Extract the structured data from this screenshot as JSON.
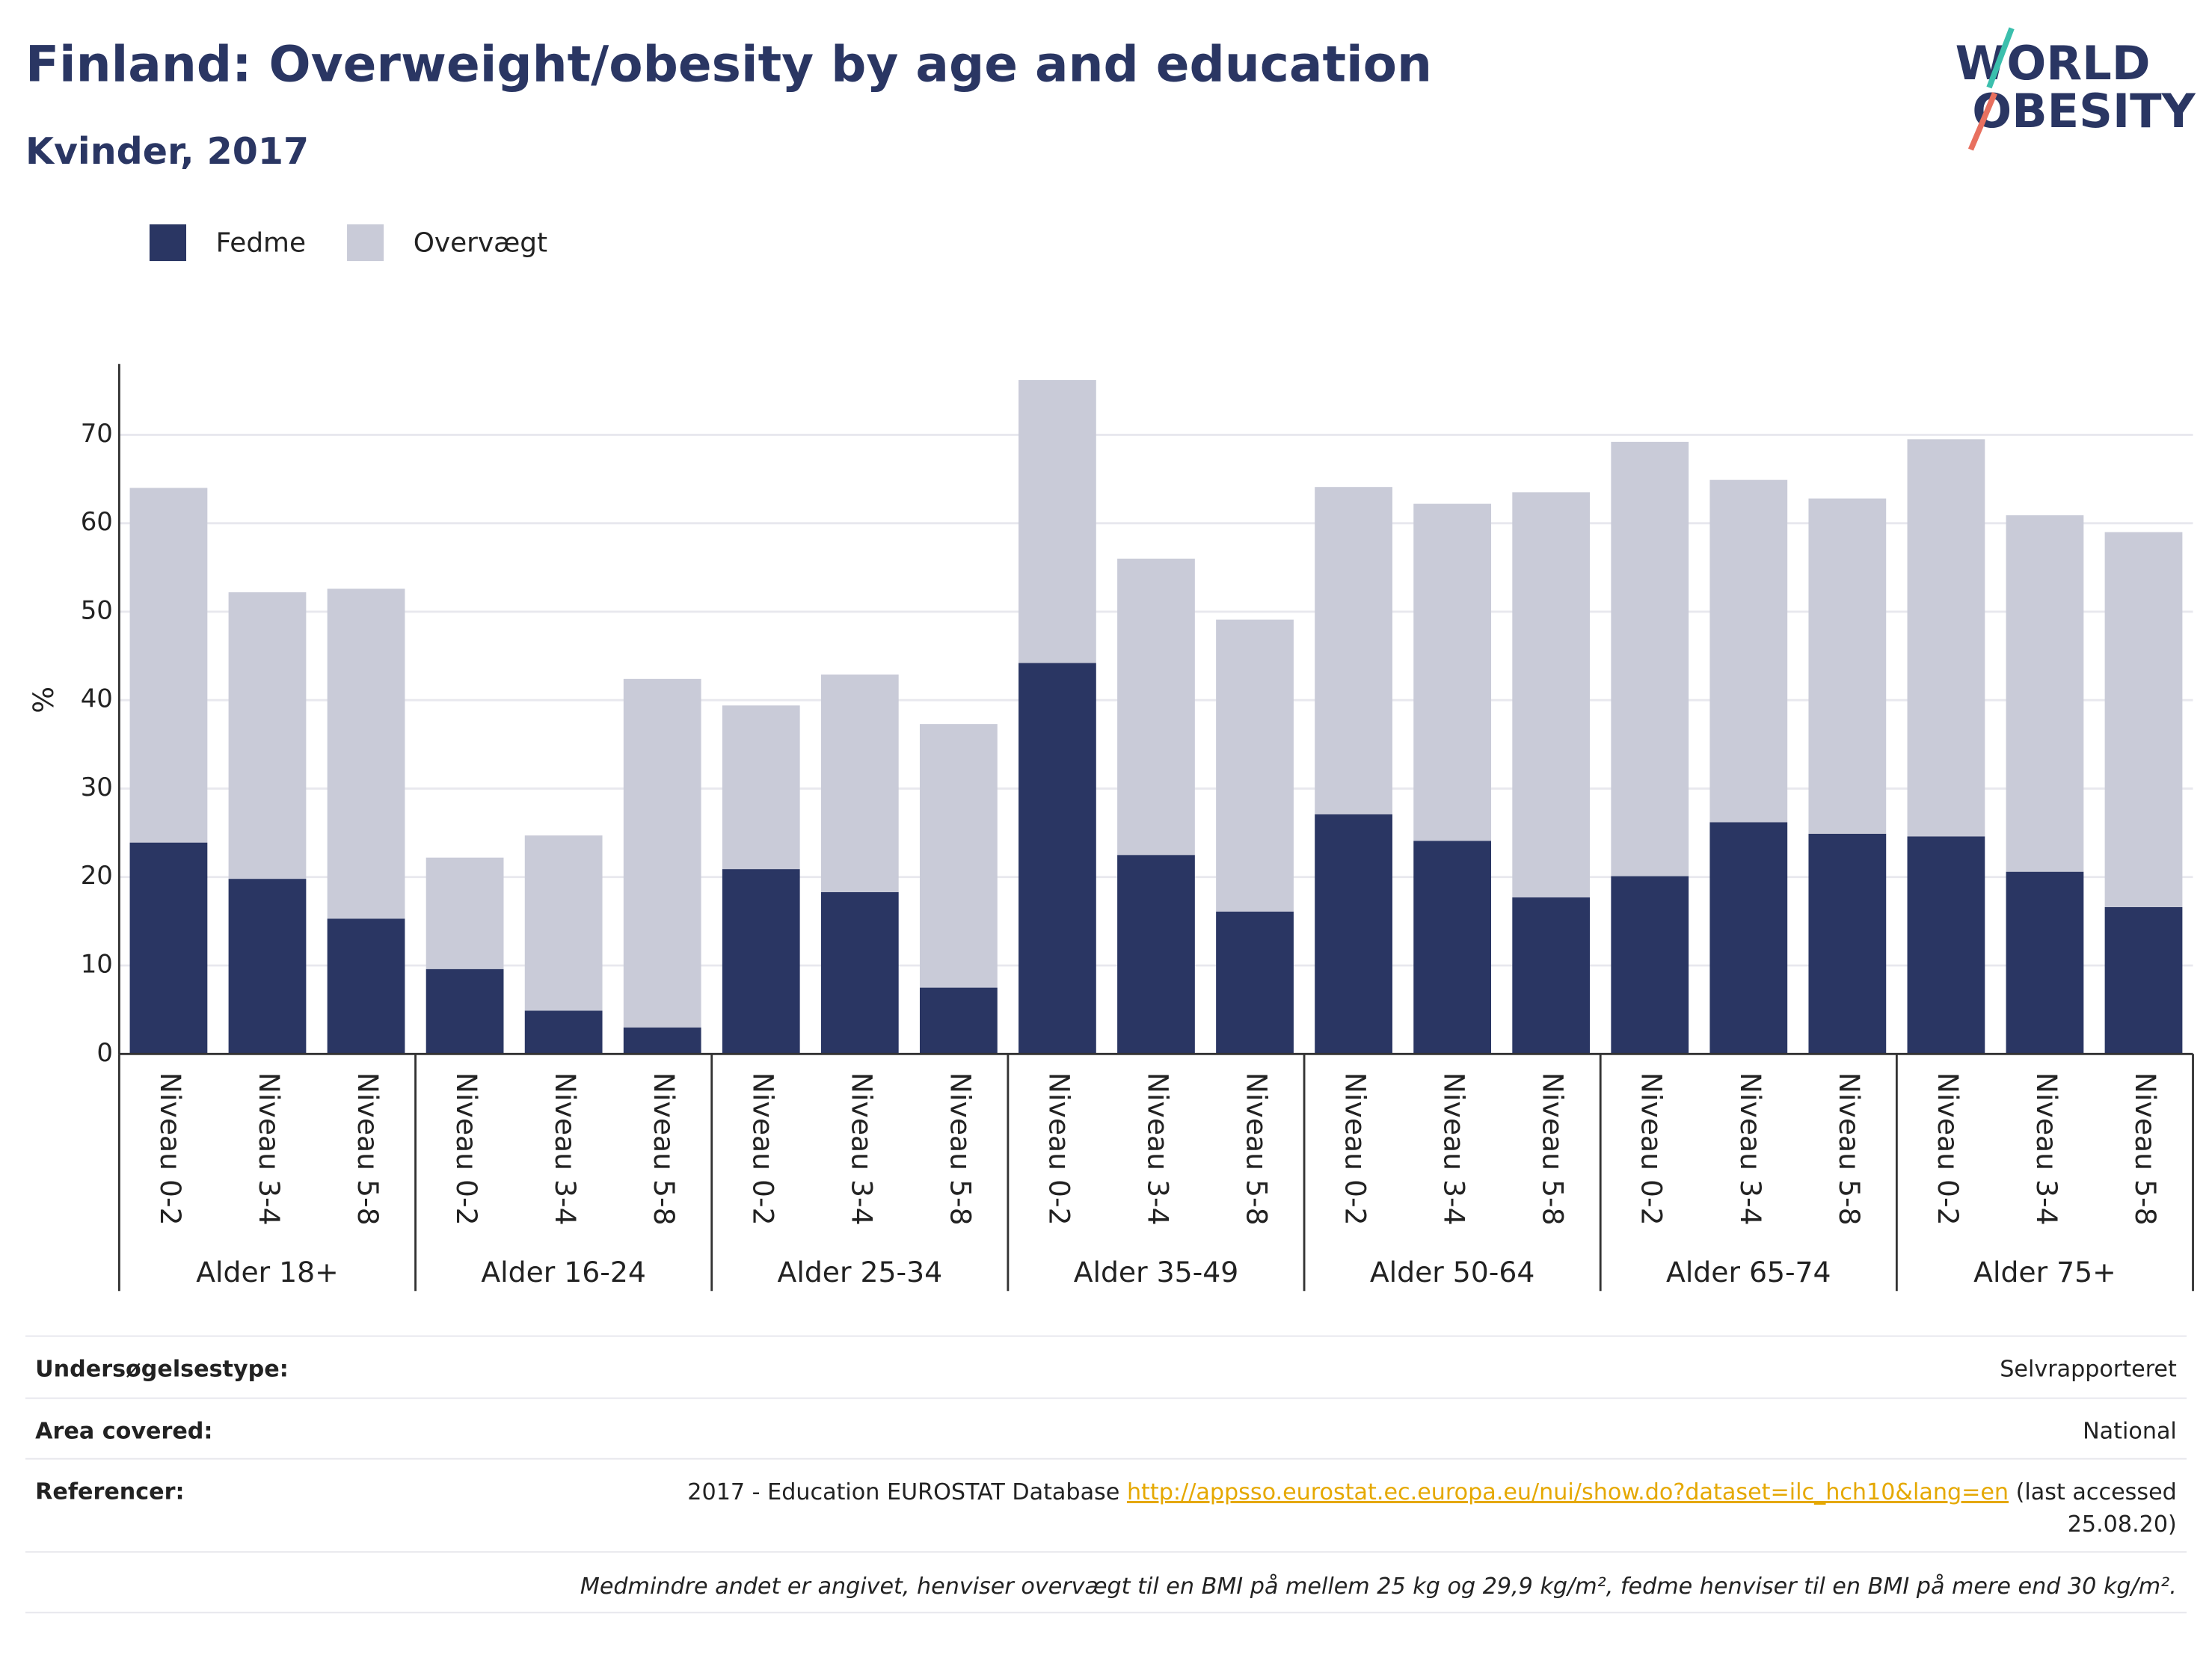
{
  "chart_data": {
    "type": "bar",
    "stacked": true,
    "title": "Finland: Overweight/obesity by age and education",
    "subtitle": "Kvinder, 2017",
    "ylabel": "%",
    "categories": [
      "Niveau 0-2",
      "Niveau 3-4",
      "Niveau 5-8",
      "Niveau 0-2",
      "Niveau 3-4",
      "Niveau 5-8",
      "Niveau 0-2",
      "Niveau 3-4",
      "Niveau 5-8",
      "Niveau 0-2",
      "Niveau 3-4",
      "Niveau 5-8",
      "Niveau 0-2",
      "Niveau 3-4",
      "Niveau 5-8",
      "Niveau 0-2",
      "Niveau 3-4",
      "Niveau 5-8",
      "Niveau 0-2",
      "Niveau 3-4",
      "Niveau 5-8"
    ],
    "groups": [
      "Alder 18+",
      "Alder 16-24",
      "Alder 25-34",
      "Alder 35-49",
      "Alder 50-64",
      "Alder 65-74",
      "Alder 75+"
    ],
    "series": [
      {
        "name": "Fedme",
        "color": "#2a3663",
        "values": [
          23.9,
          19.8,
          15.3,
          9.6,
          4.9,
          3.0,
          20.9,
          18.3,
          7.5,
          44.2,
          22.5,
          16.1,
          27.1,
          24.1,
          17.7,
          20.1,
          26.2,
          24.9,
          24.6,
          20.6,
          16.6
        ]
      },
      {
        "name": "Overvægt",
        "color": "#c9cbd8",
        "values": [
          40.1,
          32.4,
          37.3,
          12.6,
          19.8,
          39.4,
          18.5,
          24.6,
          29.8,
          32.0,
          33.5,
          33.0,
          37.0,
          38.1,
          45.8,
          49.1,
          38.7,
          37.9,
          44.9,
          40.3,
          42.4
        ]
      }
    ],
    "ylim": [
      0,
      78
    ],
    "yticks": [
      0,
      10,
      20,
      30,
      40,
      50,
      60,
      70
    ],
    "grid": true,
    "legend": "top-left"
  },
  "logo": [
    "WORLD",
    "OBESITY"
  ],
  "footer": {
    "rows": [
      {
        "label": "Undersøgelsestype:",
        "value": "Selvrapporteret"
      },
      {
        "label": "Area covered:",
        "value": "National"
      }
    ],
    "reference": {
      "label": "Referencer:",
      "text": "2017 - Education EUROSTAT Database ",
      "link": "http://appsso.eurostat.ec.europa.eu/nui/show.do?dataset=ilc_hch10&lang=en",
      "after": " (last accessed",
      "date": "25.08.20)"
    },
    "note": "Medmindre andet er angivet, henviser overvægt til en BMI på mellem 25 kg og 29,9 kg/m², fedme henviser til en BMI på mere end 30 kg/m²."
  }
}
